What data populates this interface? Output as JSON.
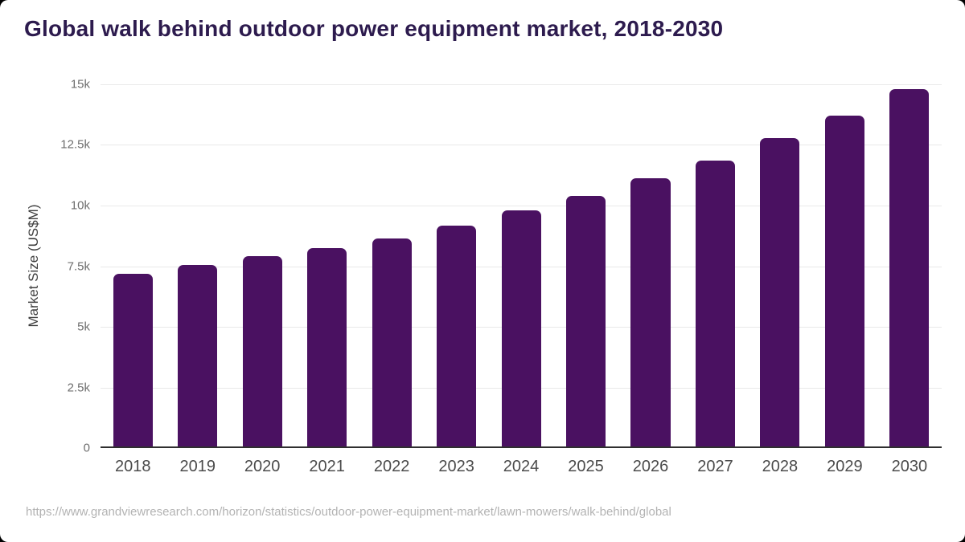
{
  "window": {
    "background": "#000000",
    "card_background": "#ffffff"
  },
  "header": {
    "title": "Global walk behind outdoor power equipment market, 2018-2030",
    "title_color": "#2d1b4e"
  },
  "footer": {
    "source_url": "https://www.grandviewresearch.com/horizon/statistics/outdoor-power-equipment-market/lawn-mowers/walk-behind/global"
  },
  "chart_data": {
    "type": "bar",
    "title": "Global walk behind outdoor power equipment market, 2018-2030",
    "categories": [
      "2018",
      "2019",
      "2020",
      "2021",
      "2022",
      "2023",
      "2024",
      "2025",
      "2026",
      "2027",
      "2028",
      "2029",
      "2030"
    ],
    "values": [
      7200,
      7550,
      7930,
      8250,
      8650,
      9180,
      9790,
      10400,
      11120,
      11860,
      12770,
      13700,
      14800
    ],
    "xlabel": "",
    "ylabel": "Market Size (US$M)",
    "ylim": [
      0,
      15000
    ],
    "ytick_interval": 2500,
    "ytick_labels_top_to_bottom": [
      "15k",
      "12.5k",
      "10k",
      "7.5k",
      "5k",
      "2.5k",
      "0"
    ],
    "grid": true,
    "legend": false,
    "bar_color": "#4a1161",
    "grid_color": "#e9e9e9",
    "axis_color": "#2f2f2f",
    "ytick_label_color": "#6e6e6e",
    "xtick_label_color": "#4b4b4b",
    "axis_title_color": "#3d3d3d"
  }
}
